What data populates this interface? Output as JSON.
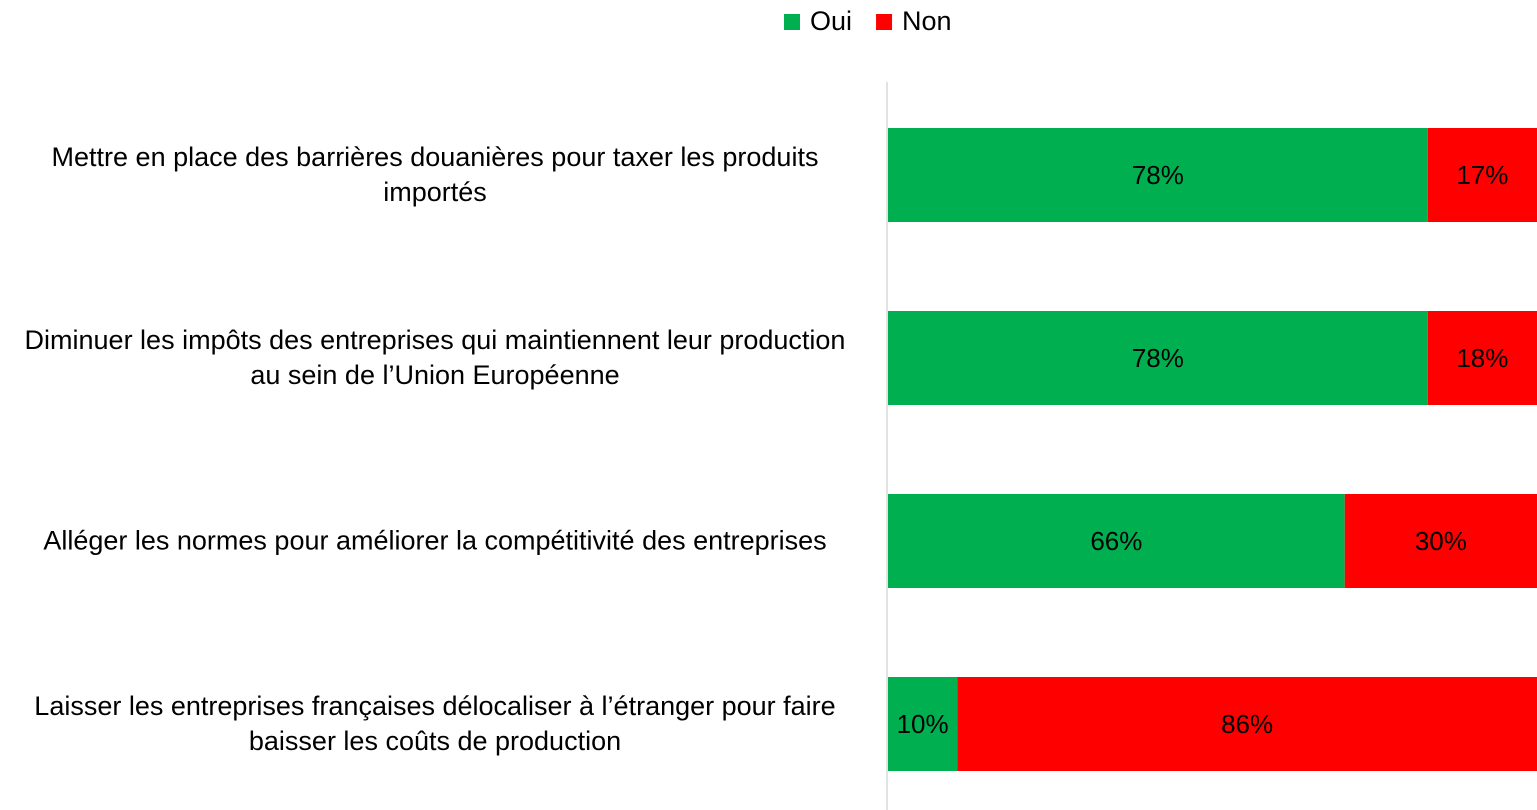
{
  "chart_data": {
    "type": "stacked_barh",
    "categories": [
      "Mettre en place des barrières douanières pour taxer les produits importés",
      "Diminuer les impôts des entreprises qui maintiennent leur production au sein de l’Union Européenne",
      "Alléger les normes pour améliorer la compétitivité des entreprises",
      "Laisser les entreprises françaises délocaliser à l’étranger pour faire baisser les coûts de production"
    ],
    "series": [
      {
        "name": "Oui",
        "color": "#00b050",
        "values": [
          78,
          78,
          66,
          10
        ],
        "value_labels": [
          "78%",
          "78%",
          "66%",
          "10%"
        ]
      },
      {
        "name": "Non",
        "color": "#ff0000",
        "values": [
          17,
          18,
          30,
          86
        ],
        "value_labels": [
          "17%",
          "18%",
          "30%",
          "86%"
        ]
      }
    ],
    "legend": "top"
  }
}
